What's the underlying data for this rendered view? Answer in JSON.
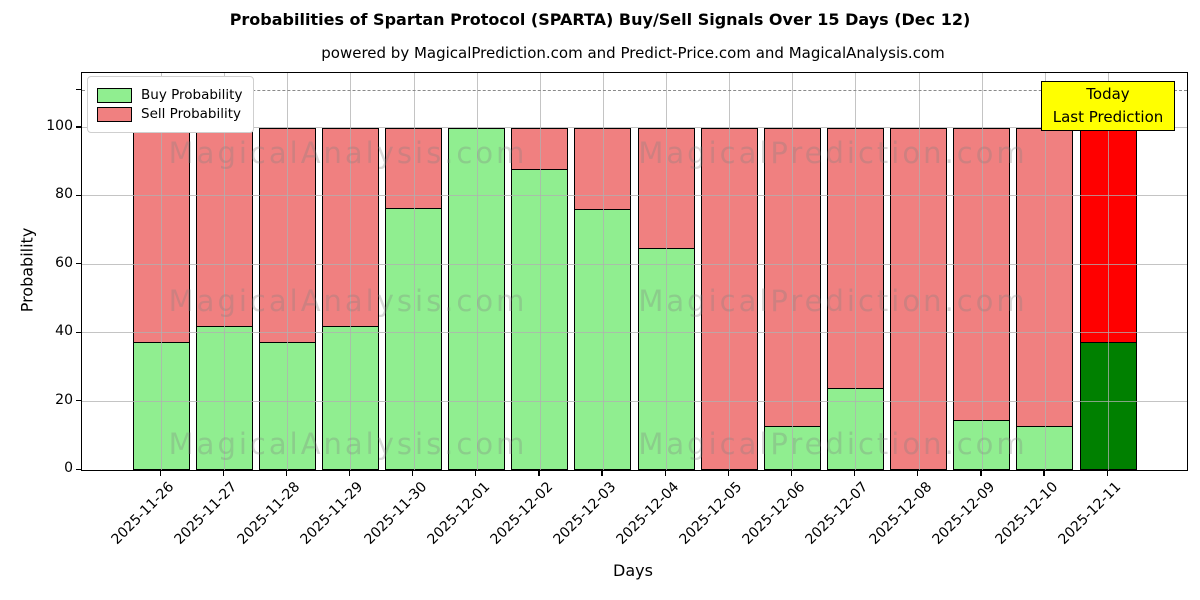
{
  "title": "Probabilities of Spartan Protocol (SPARTA) Buy/Sell Signals Over 15 Days (Dec 12)",
  "subtitle": "powered by MagicalPrediction.com and Predict-Price.com and MagicalAnalysis.com",
  "watermarks": {
    "left": "MagicalAnalysis.com",
    "right": "MagicalPrediction.com"
  },
  "legend": {
    "items": [
      {
        "label": "Buy Probability",
        "color": "#90ee90"
      },
      {
        "label": "Sell Probability",
        "color": "#f08080"
      }
    ]
  },
  "annotation_box": {
    "lines": [
      "Today",
      "Last Prediction"
    ],
    "bg_color": "#ffff00"
  },
  "chart_data": {
    "type": "bar",
    "stacked": true,
    "title": "Probabilities of Spartan Protocol (SPARTA) Buy/Sell Signals Over 15 Days (Dec 12)",
    "subtitle": "powered by MagicalPrediction.com and Predict-Price.com and MagicalAnalysis.com",
    "xlabel": "Days",
    "ylabel": "Probability",
    "x": [
      "2025-11-26",
      "2025-11-27",
      "2025-11-28",
      "2025-11-29",
      "2025-11-30",
      "2025-12-01",
      "2025-12-02",
      "2025-12-03",
      "2025-12-04",
      "2025-12-05",
      "2025-12-06",
      "2025-12-07",
      "2025-12-08",
      "2025-12-09",
      "2025-12-10",
      "2025-12-11"
    ],
    "series": [
      {
        "name": "Buy Probability",
        "color": "#90ee90",
        "values": [
          37.5,
          42.4,
          37.5,
          42.4,
          76.7,
          100,
          88.2,
          76.5,
          65,
          0,
          13,
          24.2,
          0,
          14.8,
          12.9,
          37.5
        ]
      },
      {
        "name": "Sell Probability",
        "color": "#f08080",
        "values": [
          62.5,
          57.6,
          62.5,
          57.6,
          23.3,
          0,
          11.8,
          23.5,
          35,
          100,
          87,
          75.8,
          100,
          85.2,
          87.1,
          62.5
        ]
      }
    ],
    "highlight_bar": {
      "index": 15,
      "buy_color": "#008000",
      "sell_color": "#ff0000"
    },
    "yticks": [
      0,
      20,
      40,
      60,
      80,
      100
    ],
    "ylim": [
      0,
      116
    ],
    "dashed_line_y": 111,
    "grid": true,
    "grid_color": "#b0b0b0",
    "bar_edge_color": "#000000",
    "legend_position": "upper left"
  }
}
